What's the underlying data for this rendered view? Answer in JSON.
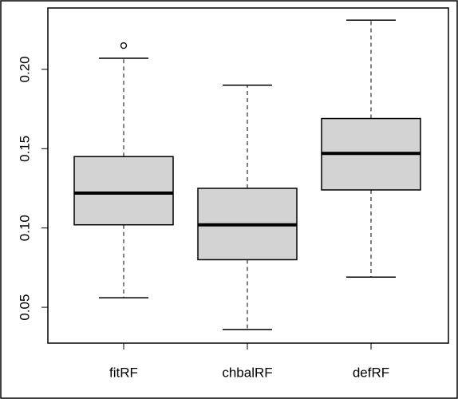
{
  "chart_data": {
    "type": "boxplot",
    "categories": [
      "fitRF",
      "chbalRF",
      "defRF"
    ],
    "boxes": [
      {
        "whisker_low": 0.056,
        "q1": 0.102,
        "median": 0.122,
        "q3": 0.145,
        "whisker_high": 0.207,
        "outliers": [
          0.215
        ]
      },
      {
        "whisker_low": 0.036,
        "q1": 0.08,
        "median": 0.102,
        "q3": 0.125,
        "whisker_high": 0.19,
        "outliers": []
      },
      {
        "whisker_low": 0.069,
        "q1": 0.124,
        "median": 0.147,
        "q3": 0.169,
        "whisker_high": 0.231,
        "outliers": []
      }
    ],
    "color": "#d3d3d3",
    "ylim": [
      0.0274,
      0.2387
    ],
    "yticks": [
      0.05,
      {
        "value": 0.1,
        "label": "0.10"
      },
      0.15,
      {
        "value": 0.2,
        "label": "0.20"
      }
    ]
  }
}
